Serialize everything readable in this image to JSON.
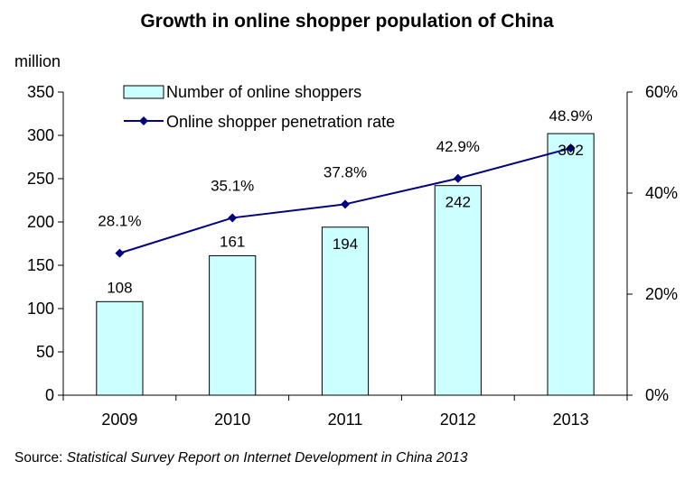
{
  "chart_data": {
    "type": "bar",
    "title": "Growth in online shopper population of China",
    "ylabel": "million",
    "categories": [
      "2009",
      "2010",
      "2011",
      "2012",
      "2013"
    ],
    "ylim": [
      0,
      350
    ],
    "y_ticks": [
      "0",
      "50",
      "100",
      "150",
      "200",
      "250",
      "300",
      "350"
    ],
    "y2lim": [
      0,
      0.6
    ],
    "y2_ticks": [
      "0%",
      "20%",
      "40%",
      "60%"
    ],
    "legend_position": "top-left",
    "grid": false,
    "series": [
      {
        "name": "Number of online shoppers",
        "type": "bar",
        "axis": "left",
        "values": [
          108,
          161,
          194,
          242,
          302
        ],
        "labels": [
          "108",
          "161",
          "194",
          "242",
          "302"
        ],
        "color": "#ccffff"
      },
      {
        "name": "Online shopper penetration rate",
        "type": "line",
        "axis": "right",
        "values": [
          0.281,
          0.351,
          0.378,
          0.429,
          0.489
        ],
        "labels": [
          "28.1%",
          "35.1%",
          "37.8%",
          "42.9%",
          "48.9%"
        ],
        "color": "#000080"
      }
    ]
  },
  "source": {
    "prefix": "Source: ",
    "title": "Statistical Survey Report on Internet Development in China 2013"
  }
}
